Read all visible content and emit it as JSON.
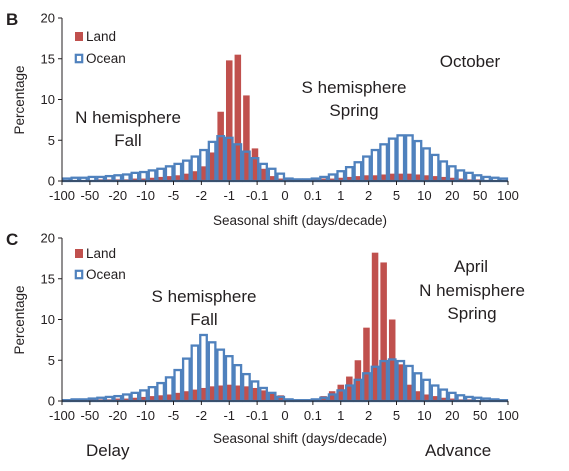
{
  "colors": {
    "land": "#c0504d",
    "ocean": "#4f81bd",
    "axis": "#231f20"
  },
  "footer": {
    "left": "Delay",
    "right": "Advance"
  },
  "chart_data": [
    {
      "type": "bar",
      "panel": "B",
      "xlabel": "Seasonal shift (days/decade)",
      "ylabel": "Percentage",
      "ylim": [
        0,
        20
      ],
      "yticks": [
        "0",
        "5",
        "10",
        "15",
        "20"
      ],
      "xtick_labels": [
        "-100",
        "-50",
        "-20",
        "-10",
        "-5",
        "-2",
        "-1",
        "-0.1",
        "0",
        "0.1",
        "1",
        "2",
        "5",
        "10",
        "20",
        "50",
        "100"
      ],
      "legend": [
        "Land",
        "Ocean"
      ],
      "annotations": {
        "month": "October",
        "left_top": "N hemisphere",
        "left_bottom": "Fall",
        "right_top": "S hemisphere",
        "right_bottom": "Spring"
      },
      "series": [
        {
          "name": "Land",
          "values": [
            0.1,
            0.1,
            0.1,
            0.1,
            0.2,
            0.2,
            0.2,
            0.2,
            0.3,
            0.3,
            0.4,
            0.5,
            0.6,
            0.7,
            0.9,
            1.2,
            1.8,
            3.5,
            8.5,
            14.8,
            15.5,
            10.5,
            4.0,
            1.5,
            0.6,
            0.3,
            0.2,
            0.1,
            0.1,
            0.2,
            0.3,
            0.3,
            0.4,
            0.5,
            0.6,
            0.7,
            0.7,
            0.8,
            0.9,
            0.9,
            0.9,
            0.8,
            0.7,
            0.6,
            0.5,
            0.4,
            0.3,
            0.2,
            0.2,
            0.1,
            0.1,
            0.1
          ]
        },
        {
          "name": "Ocean",
          "values": [
            0.3,
            0.4,
            0.4,
            0.5,
            0.5,
            0.6,
            0.7,
            0.8,
            1.0,
            1.1,
            1.3,
            1.5,
            1.8,
            2.1,
            2.5,
            3.0,
            3.8,
            4.8,
            5.5,
            5.3,
            4.5,
            3.6,
            2.8,
            2.1,
            1.5,
            0.9,
            0.3,
            0.2,
            0.2,
            0.3,
            0.5,
            0.8,
            1.2,
            1.7,
            2.3,
            3.0,
            3.8,
            4.5,
            5.2,
            5.6,
            5.6,
            4.9,
            4.0,
            3.2,
            2.4,
            1.8,
            1.3,
            1.0,
            0.7,
            0.5,
            0.4,
            0.3
          ]
        }
      ]
    },
    {
      "type": "bar",
      "panel": "C",
      "xlabel": "Seasonal shift (days/decade)",
      "ylabel": "Percentage",
      "ylim": [
        0,
        20
      ],
      "yticks": [
        "0",
        "5",
        "10",
        "15",
        "20"
      ],
      "xtick_labels": [
        "-100",
        "-50",
        "-20",
        "-10",
        "-5",
        "-2",
        "-1",
        "-0.1",
        "0",
        "0.1",
        "1",
        "2",
        "5",
        "10",
        "20",
        "50",
        "100"
      ],
      "legend": [
        "Land",
        "Ocean"
      ],
      "annotations": {
        "month": "April",
        "left_top": "S hemisphere",
        "left_bottom": "Fall",
        "right_top": "N hemisphere",
        "right_bottom": "Spring"
      },
      "series": [
        {
          "name": "Land",
          "values": [
            0.1,
            0.1,
            0.1,
            0.2,
            0.2,
            0.2,
            0.3,
            0.3,
            0.4,
            0.5,
            0.6,
            0.7,
            0.8,
            1.0,
            1.2,
            1.4,
            1.6,
            1.8,
            1.9,
            2.0,
            1.9,
            1.8,
            1.6,
            1.3,
            1.0,
            0.7,
            0.3,
            0.1,
            0.1,
            0.3,
            0.6,
            1.2,
            2.0,
            3.0,
            5.0,
            9.0,
            18.2,
            17.0,
            10.0,
            4.5,
            2.0,
            1.2,
            0.8,
            0.6,
            0.4,
            0.3,
            0.2,
            0.2,
            0.1,
            0.1,
            0.1,
            0.1
          ]
        },
        {
          "name": "Ocean",
          "values": [
            0.1,
            0.2,
            0.2,
            0.3,
            0.4,
            0.5,
            0.6,
            0.8,
            1.0,
            1.3,
            1.7,
            2.2,
            2.9,
            3.8,
            5.2,
            6.8,
            8.1,
            7.2,
            6.3,
            5.5,
            4.4,
            3.3,
            2.4,
            1.6,
            1.0,
            0.5,
            0.2,
            0.1,
            0.1,
            0.2,
            0.4,
            0.8,
            1.3,
            1.9,
            2.6,
            3.4,
            4.2,
            4.9,
            5.1,
            4.9,
            4.3,
            3.4,
            2.6,
            1.9,
            1.4,
            1.0,
            0.7,
            0.5,
            0.4,
            0.3,
            0.2,
            0.1
          ]
        }
      ]
    }
  ]
}
